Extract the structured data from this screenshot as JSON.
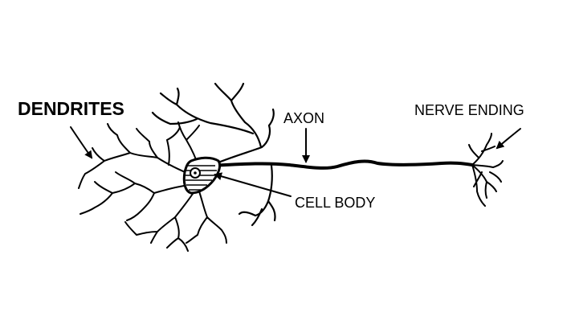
{
  "labels": {
    "dendrites": "DENDRITES",
    "axon": "AXON",
    "nerve_ending": "NERVE ENDING",
    "cell_body": "CELL BODY"
  },
  "colors": {
    "ink": "#000000",
    "background": "#ffffff"
  }
}
